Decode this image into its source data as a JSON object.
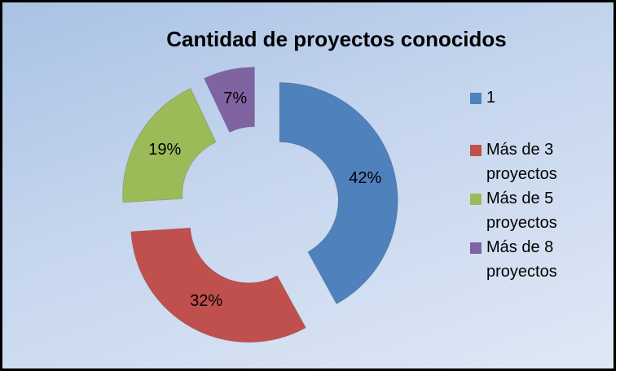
{
  "chart_data": {
    "type": "donut",
    "title": "Cantidad de proyectos conocidos",
    "categories": [
      "1",
      "Más de 3 proyectos",
      "Más de 5 proyectos",
      "Más de 8 proyectos"
    ],
    "values": [
      42,
      32,
      19,
      7
    ],
    "value_labels": [
      "42%",
      "32%",
      "19%",
      "7%"
    ],
    "colors": [
      "#4f81bd",
      "#c0504d",
      "#9bbb59",
      "#8064a2"
    ],
    "legend": "right"
  }
}
